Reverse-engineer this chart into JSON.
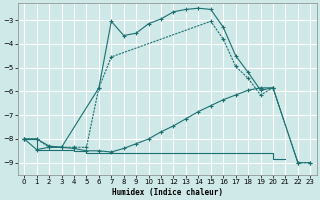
{
  "xlabel": "Humidex (Indice chaleur)",
  "bg_color": "#cfe8e8",
  "grid_color": "#ffffff",
  "line_color": "#1a7070",
  "ylim": [
    -9.5,
    -2.3
  ],
  "xlim": [
    -0.5,
    23.5
  ],
  "yticks": [
    -9,
    -8,
    -7,
    -6,
    -5,
    -4,
    -3
  ],
  "xticks": [
    0,
    1,
    2,
    3,
    4,
    5,
    6,
    7,
    8,
    9,
    10,
    11,
    12,
    13,
    14,
    15,
    16,
    17,
    18,
    19,
    20,
    21,
    22,
    23
  ],
  "line1_x": [
    0,
    1,
    2,
    3,
    6,
    7,
    8,
    9,
    10,
    11,
    12,
    13,
    14,
    15,
    16,
    17,
    18,
    19,
    20,
    22,
    23
  ],
  "line1_y": [
    -8.0,
    -8.0,
    -8.3,
    -8.35,
    -5.85,
    -3.05,
    -3.65,
    -3.55,
    -3.15,
    -2.95,
    -2.65,
    -2.55,
    -2.5,
    -2.55,
    -3.3,
    -4.5,
    -5.2,
    -5.95,
    -5.85,
    -9.0,
    -9.0
  ],
  "line2_x": [
    0,
    1,
    2,
    3,
    4,
    5,
    6,
    7,
    15,
    16,
    17,
    18,
    19,
    20,
    22,
    23
  ],
  "line2_y": [
    -8.0,
    -8.0,
    -8.35,
    -8.35,
    -8.35,
    -8.35,
    -5.85,
    -4.55,
    -3.05,
    -3.8,
    -4.95,
    -5.45,
    -6.15,
    -5.85,
    -9.0,
    -9.0
  ],
  "line3_x": [
    0,
    1,
    2,
    3,
    4,
    5,
    6,
    7,
    8,
    9,
    10,
    11,
    12,
    13,
    14,
    15,
    16,
    17,
    18,
    19,
    20,
    21
  ],
  "line3_y": [
    -8.0,
    -8.45,
    -8.45,
    -8.45,
    -8.5,
    -8.6,
    -8.6,
    -8.6,
    -8.6,
    -8.6,
    -8.6,
    -8.6,
    -8.6,
    -8.6,
    -8.6,
    -8.6,
    -8.6,
    -8.6,
    -8.6,
    -8.6,
    -8.85,
    -8.85
  ],
  "line4_x": [
    0,
    1,
    2,
    3,
    4,
    5,
    6,
    7,
    8,
    9,
    10,
    11,
    12,
    13,
    14,
    15,
    16,
    17,
    18,
    19,
    20
  ],
  "line4_y": [
    -8.0,
    -8.45,
    -8.35,
    -8.35,
    -8.4,
    -8.5,
    -8.5,
    -8.55,
    -8.4,
    -8.2,
    -8.0,
    -7.7,
    -7.45,
    -7.15,
    -6.85,
    -6.6,
    -6.35,
    -6.15,
    -5.95,
    -5.85,
    -5.85
  ]
}
